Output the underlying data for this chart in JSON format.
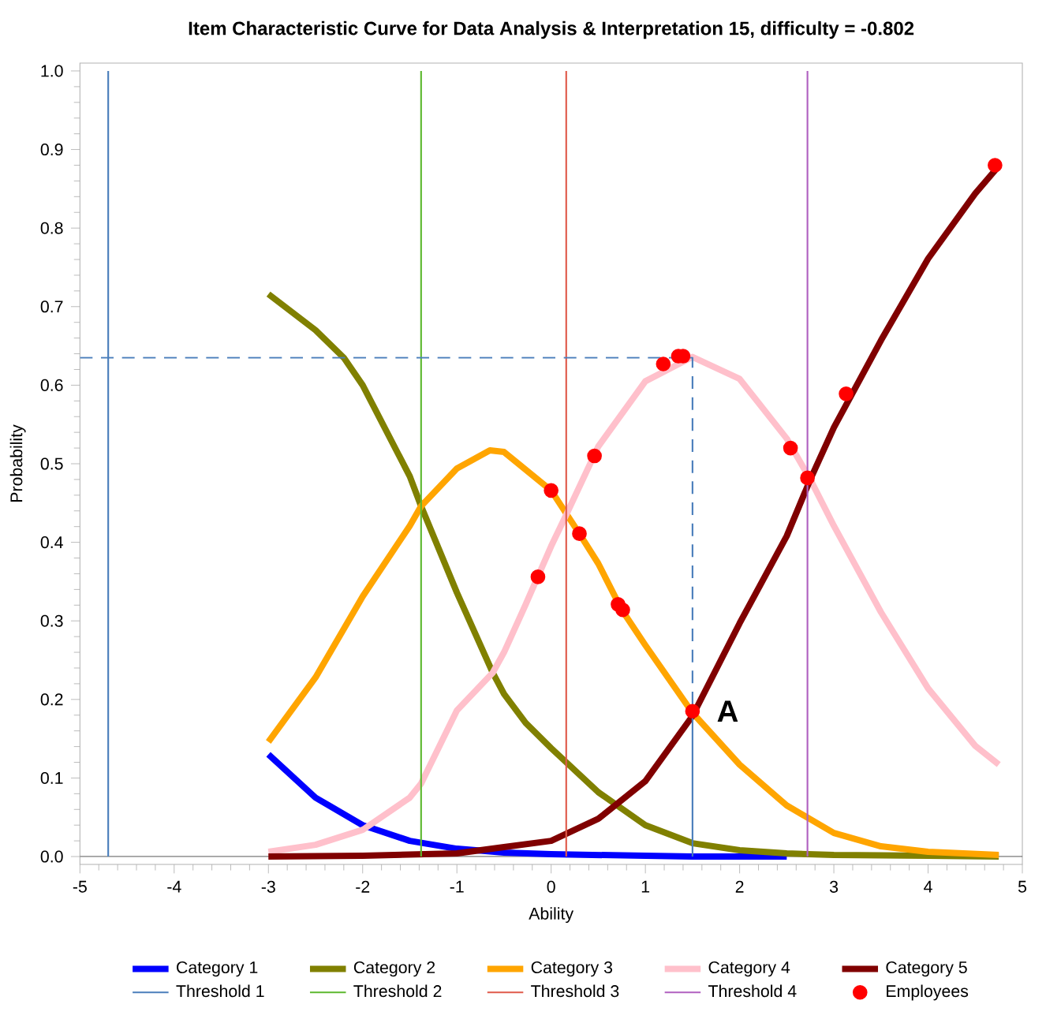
{
  "chart_data": {
    "type": "line",
    "title": "Item Characteristic Curve for Data Analysis & Interpretation 15, difficulty = -0.802",
    "xlabel": "Ability",
    "ylabel": "Probability",
    "xlim": [
      -5,
      5
    ],
    "ylim": [
      -0.01,
      1.01
    ],
    "xticks": [
      -5,
      -4,
      -3,
      -2,
      -1,
      0,
      1,
      2,
      3,
      4,
      5
    ],
    "yticks": [
      {
        "value": 0,
        "label": "0.0"
      },
      {
        "value": 0.1,
        "label": "0.1"
      },
      {
        "value": 0.2,
        "label": "0.2"
      },
      {
        "value": 0.3,
        "label": "0.3"
      },
      {
        "value": 0.4,
        "label": "0.4"
      },
      {
        "value": 0.5,
        "label": "0.5"
      },
      {
        "value": 0.6,
        "label": "0.6"
      },
      {
        "value": 0.7,
        "label": "0.7"
      },
      {
        "value": 0.8,
        "label": "0.8"
      },
      {
        "value": 0.9,
        "label": "0.9"
      },
      {
        "value": 1,
        "label": "1.0"
      }
    ],
    "legend": "bottom",
    "ref_lines": [
      {
        "axis": "y",
        "value": 0,
        "color": "#404040"
      }
    ],
    "annotations": [
      {
        "text": "A",
        "x": 1.5,
        "y": 0.185
      }
    ],
    "series": [
      {
        "name": "Category 1",
        "color": "#0000ff",
        "x": [
          -3,
          -2.5,
          -2,
          -1.5,
          -1,
          -0.5,
          0,
          0.5,
          1,
          1.5,
          2,
          2.5
        ],
        "values": [
          0.13,
          0.075,
          0.04,
          0.02,
          0.01,
          0.005,
          0.003,
          0.002,
          0.001,
          0,
          0,
          0
        ]
      },
      {
        "name": "Category 2",
        "color": "#808000",
        "x": [
          -3,
          -2.5,
          -2.2,
          -2,
          -1.5,
          -1.38,
          -1,
          -0.62,
          -0.5,
          -0.27,
          0,
          0.5,
          1,
          1.5,
          2,
          2.5,
          3,
          4,
          4.75
        ],
        "values": [
          0.716,
          0.67,
          0.635,
          0.6,
          0.484,
          0.446,
          0.336,
          0.234,
          0.207,
          0.17,
          0.138,
          0.082,
          0.04,
          0.017,
          0.008,
          0.004,
          0.002,
          0.001,
          0
        ]
      },
      {
        "name": "Category 3",
        "color": "#ffa500",
        "x": [
          -3,
          -2.5,
          -2,
          -1.5,
          -1.38,
          -1,
          -0.65,
          -0.5,
          0,
          0.3,
          0.5,
          0.75,
          1,
          1.5,
          2,
          2.5,
          3,
          3.5,
          4,
          4.75
        ],
        "values": [
          0.146,
          0.228,
          0.331,
          0.421,
          0.446,
          0.494,
          0.517,
          0.515,
          0.466,
          0.411,
          0.373,
          0.314,
          0.269,
          0.183,
          0.117,
          0.065,
          0.03,
          0.013,
          0.006,
          0.002
        ]
      },
      {
        "name": "Category 4",
        "color": "#ffc0cb",
        "x": [
          -3,
          -2.5,
          -2,
          -1.5,
          -1.38,
          -1,
          -0.62,
          -0.5,
          -0.27,
          0,
          0.16,
          0.5,
          1,
          1.5,
          2,
          2.5,
          2.75,
          3,
          3.5,
          4,
          4.5,
          4.75
        ],
        "values": [
          0.006,
          0.015,
          0.034,
          0.075,
          0.093,
          0.186,
          0.234,
          0.26,
          0.321,
          0.395,
          0.435,
          0.522,
          0.605,
          0.636,
          0.608,
          0.532,
          0.48,
          0.421,
          0.311,
          0.214,
          0.141,
          0.117
        ]
      },
      {
        "name": "Category 5",
        "color": "#800000",
        "x": [
          -3,
          -2,
          -1,
          -0.5,
          0,
          0.5,
          1,
          1.5,
          2,
          2.5,
          2.75,
          3,
          3.5,
          4,
          4.5,
          4.75
        ],
        "values": [
          0,
          0.001,
          0.004,
          0.012,
          0.02,
          0.048,
          0.096,
          0.179,
          0.297,
          0.408,
          0.48,
          0.546,
          0.657,
          0.761,
          0.844,
          0.879
        ]
      },
      {
        "name": "Threshold 1",
        "color": "#4a7ebb",
        "x": [
          -4.7,
          -4.7
        ],
        "values": [
          0,
          1
        ]
      },
      {
        "name": "Threshold 2",
        "color": "#5cb82e",
        "x": [
          -1.38,
          -1.38
        ],
        "values": [
          0,
          1
        ]
      },
      {
        "name": "Threshold 3",
        "color": "#e05a4a",
        "x": [
          0.16,
          0.16
        ],
        "values": [
          0,
          1
        ]
      },
      {
        "name": "Threshold 4",
        "color": "#b060c0",
        "x": [
          2.72,
          2.72
        ],
        "values": [
          0,
          1
        ]
      },
      {
        "name": "Employees",
        "type": "scatter",
        "marker": "circle",
        "color": "#ff0000",
        "x": [
          -0.14,
          0,
          0.3,
          0.46,
          0.71,
          0.76,
          1.19,
          1.35,
          1.4,
          1.5,
          2.54,
          2.72,
          3.13,
          4.71
        ],
        "values": [
          0.356,
          0.466,
          0.411,
          0.51,
          0.321,
          0.314,
          0.627,
          0.637,
          0.637,
          0.185,
          0.52,
          0.482,
          0.589,
          0.88
        ]
      },
      {
        "color": "#4a7ebb",
        "line_style": "dashed",
        "x": [
          -5,
          1.5,
          1.5
        ],
        "values": [
          0.635,
          0.635,
          0.185
        ]
      },
      {
        "color": "#4a7ebb",
        "x": [
          1.5,
          1.5
        ],
        "values": [
          0.185,
          0
        ]
      }
    ]
  }
}
